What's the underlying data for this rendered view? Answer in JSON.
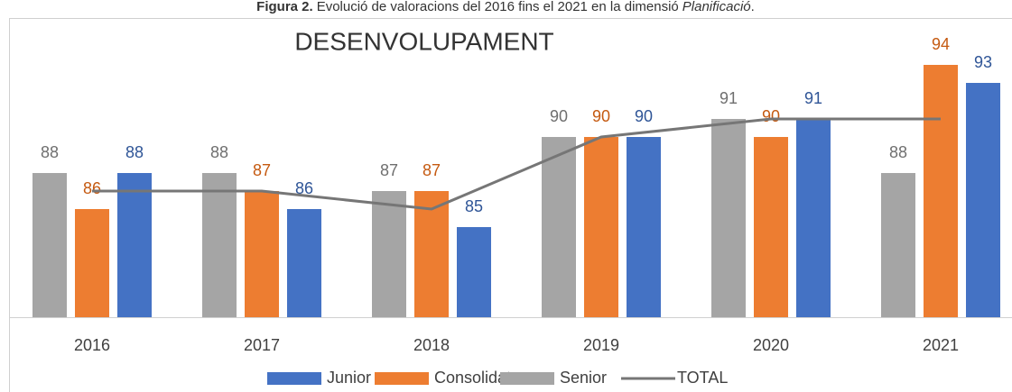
{
  "chart_data": {
    "type": "bar",
    "caption": {
      "label": "Figura 2.",
      "text": "Evolució de valoracions del 2016 fins el 2021 en la dimensió",
      "emphasis": "Planificació",
      "end": "."
    },
    "title": "DESENVOLUPAMENT",
    "categories": [
      "2016",
      "2017",
      "2018",
      "2019",
      "2020",
      "2021"
    ],
    "series": [
      {
        "name": "Junior",
        "color": "#4472c4",
        "label_color": "#2f5597",
        "values": [
          88,
          86,
          85,
          90,
          91,
          93
        ]
      },
      {
        "name": "Consolidat",
        "color": "#ed7d31",
        "label_color": "#c55a11",
        "values": [
          86,
          87,
          87,
          90,
          90,
          94
        ]
      },
      {
        "name": "Senior",
        "color": "#a5a5a5",
        "label_color": "#6f6f6f",
        "values": [
          88,
          88,
          87,
          90,
          91,
          88
        ]
      },
      {
        "name": "TOTAL",
        "type": "line",
        "color": "#767676",
        "values": [
          87,
          87,
          86,
          90,
          91,
          91
        ]
      }
    ],
    "ylim": [
      80,
      97
    ],
    "legend": "bottom"
  }
}
